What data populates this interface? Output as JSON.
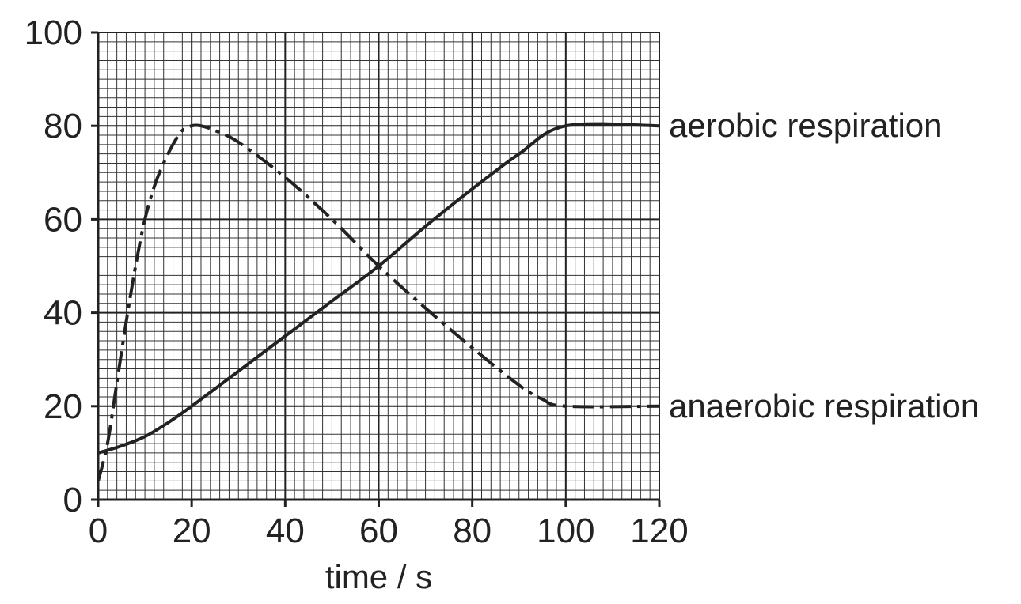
{
  "chart_data": {
    "type": "line",
    "title": "",
    "xlabel": "time / s",
    "ylabel": "",
    "xlim": [
      0,
      120
    ],
    "ylim": [
      0,
      100
    ],
    "x_ticks": [
      0,
      20,
      40,
      60,
      80,
      100,
      120
    ],
    "y_ticks": [
      0,
      20,
      40,
      60,
      80,
      100
    ],
    "grid": "fine graph-paper grid, minor every 2 units, major every 20 units",
    "legend": "labels at right end of each line",
    "series": [
      {
        "name": "aerobic respiration",
        "style": "solid",
        "points": [
          [
            0,
            10
          ],
          [
            5,
            11.5
          ],
          [
            10,
            13.5
          ],
          [
            15,
            16.5
          ],
          [
            20,
            20
          ],
          [
            30,
            27.5
          ],
          [
            40,
            35
          ],
          [
            50,
            42.5
          ],
          [
            60,
            50
          ],
          [
            70,
            58.5
          ],
          [
            80,
            66.5
          ],
          [
            90,
            74
          ],
          [
            100,
            80
          ],
          [
            120,
            80
          ]
        ]
      },
      {
        "name": "anaerobic respiration",
        "style": "dash-dot",
        "points": [
          [
            0,
            4
          ],
          [
            2,
            12
          ],
          [
            4,
            25
          ],
          [
            6,
            38
          ],
          [
            8,
            50
          ],
          [
            10,
            60
          ],
          [
            12,
            67
          ],
          [
            14,
            72
          ],
          [
            16,
            76
          ],
          [
            18,
            79
          ],
          [
            20,
            80
          ],
          [
            22,
            80
          ],
          [
            25,
            79
          ],
          [
            30,
            76.5
          ],
          [
            40,
            69
          ],
          [
            50,
            60
          ],
          [
            60,
            50
          ],
          [
            70,
            41
          ],
          [
            80,
            32.5
          ],
          [
            90,
            24.5
          ],
          [
            95,
            21.5
          ],
          [
            100,
            20
          ],
          [
            120,
            20
          ]
        ]
      }
    ]
  }
}
